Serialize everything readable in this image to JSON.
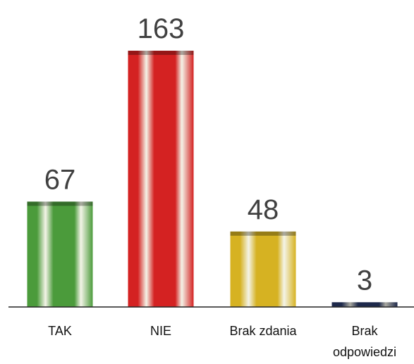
{
  "chart_data": {
    "type": "bar",
    "categories": [
      "TAK",
      "NIE",
      "Brak zdania",
      "Brak odpowiedzi"
    ],
    "values": [
      67,
      163,
      48,
      3
    ],
    "colors": [
      "#4b9b3b",
      "#d42222",
      "#d6b222",
      "#2c3c6c"
    ],
    "ylim": [
      0,
      163
    ]
  }
}
